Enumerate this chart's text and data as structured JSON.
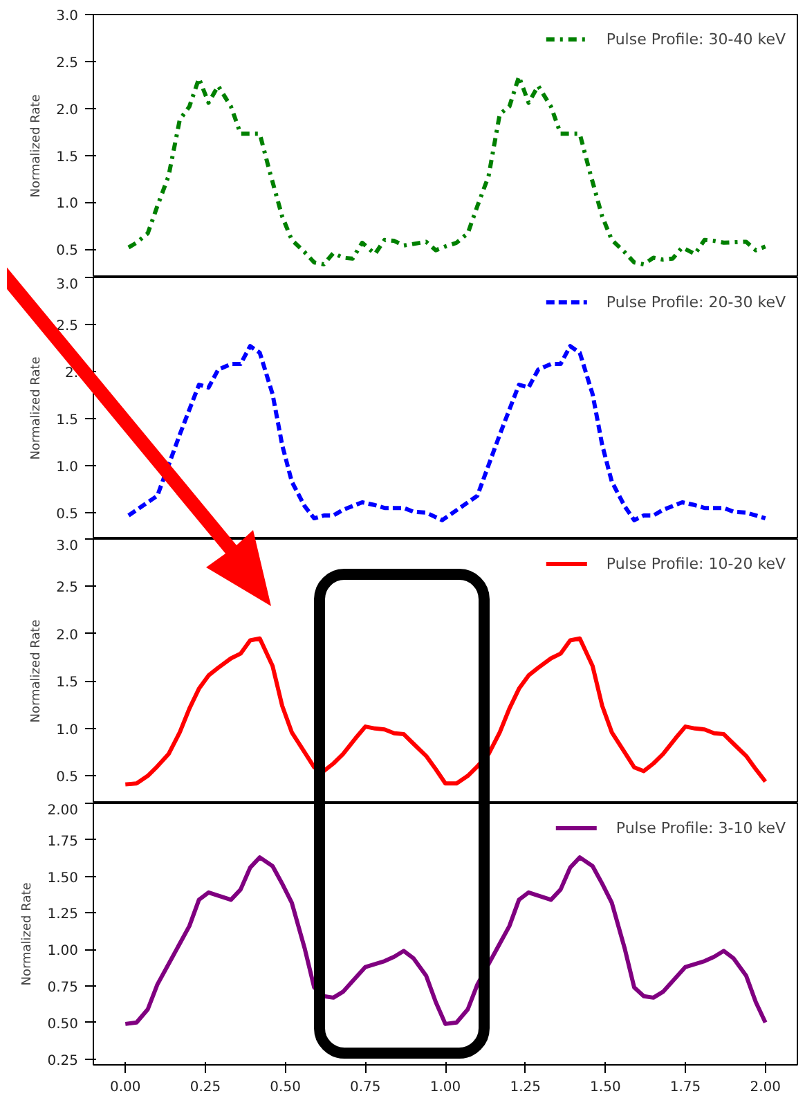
{
  "chart_data": [
    {
      "type": "line",
      "ylabel": "Normalized Rate",
      "xlim": [
        -0.1,
        2.1
      ],
      "xticks": [
        0,
        0.25,
        0.5,
        0.75,
        1,
        1.25,
        1.5,
        1.75,
        2
      ],
      "ylim": [
        0.2,
        3.0
      ],
      "yticks": [
        0.5,
        {
          "value": 1,
          "label": "1.0"
        },
        1.5,
        {
          "value": 2,
          "label": "2.0"
        },
        2.5,
        {
          "value": 3,
          "label": "3.0"
        }
      ],
      "tick_labels": "y",
      "legend": "top right",
      "line_style": "dashdot",
      "grid": false,
      "x": [
        0.01,
        0.035,
        0.07,
        0.1,
        0.135,
        0.17,
        0.2,
        0.23,
        0.26,
        0.29,
        0.33,
        0.36,
        0.42,
        0.45,
        0.49,
        0.52,
        0.56,
        0.59,
        0.62,
        0.65,
        0.68,
        0.71,
        0.74,
        0.78,
        0.81,
        0.84,
        0.87,
        0.94,
        0.97,
        1.0,
        1.035,
        1.07,
        1.1,
        1.135,
        1.17,
        1.2,
        1.23,
        1.26,
        1.29,
        1.33,
        1.36,
        1.42,
        1.45,
        1.49,
        1.52,
        1.56,
        1.59,
        1.62,
        1.65,
        1.68,
        1.71,
        1.74,
        1.78,
        1.81,
        1.84,
        1.87,
        1.94,
        1.97,
        2.0
      ],
      "series": [
        {
          "name": "Pulse Profile: 30-40 keV",
          "color": "#008000",
          "values": [
            0.52,
            0.57,
            0.67,
            0.96,
            1.28,
            1.88,
            2.02,
            2.32,
            2.06,
            2.24,
            2.02,
            1.73,
            1.73,
            1.34,
            0.85,
            0.6,
            0.47,
            0.36,
            0.34,
            0.46,
            0.41,
            0.4,
            0.57,
            0.45,
            0.6,
            0.59,
            0.54,
            0.58,
            0.49,
            0.53,
            0.57,
            0.67,
            0.96,
            1.28,
            1.94,
            2.02,
            2.34,
            2.06,
            2.24,
            2.02,
            1.73,
            1.73,
            1.34,
            0.85,
            0.6,
            0.47,
            0.36,
            0.34,
            0.41,
            0.39,
            0.4,
            0.52,
            0.45,
            0.6,
            0.59,
            0.57,
            0.58,
            0.49,
            0.53
          ]
        }
      ]
    },
    {
      "type": "line",
      "ylabel": "Normalized Rate",
      "xlim": [
        -0.1,
        2.1
      ],
      "xticks": [
        0,
        0.25,
        0.5,
        0.75,
        1,
        1.25,
        1.5,
        1.75,
        2
      ],
      "ylim": [
        0.22,
        3.0
      ],
      "yticks": [
        0.5,
        {
          "value": 1,
          "label": "1.0"
        },
        1.5,
        {
          "value": 2,
          "label": "2."
        },
        2.5,
        {
          "value": 3,
          "label": "3.0"
        }
      ],
      "tick_labels": "y",
      "legend": "top right",
      "line_style": "dashed",
      "grid": false,
      "x": [
        0.01,
        0.1,
        0.17,
        0.23,
        0.26,
        0.29,
        0.33,
        0.36,
        0.39,
        0.42,
        0.46,
        0.49,
        0.52,
        0.56,
        0.59,
        0.62,
        0.65,
        0.68,
        0.74,
        0.78,
        0.81,
        0.87,
        0.9,
        0.94,
        0.99,
        1.1,
        1.17,
        1.23,
        1.26,
        1.29,
        1.33,
        1.36,
        1.39,
        1.42,
        1.46,
        1.49,
        1.52,
        1.56,
        1.59,
        1.62,
        1.65,
        1.68,
        1.74,
        1.78,
        1.81,
        1.87,
        1.9,
        1.94,
        2.0
      ],
      "series": [
        {
          "name": "Pulse Profile: 20-30 keV",
          "color": "#0000ff",
          "values": [
            0.47,
            0.68,
            1.33,
            1.86,
            1.83,
            2.02,
            2.08,
            2.08,
            2.27,
            2.2,
            1.76,
            1.22,
            0.83,
            0.57,
            0.44,
            0.47,
            0.47,
            0.53,
            0.61,
            0.58,
            0.55,
            0.55,
            0.51,
            0.5,
            0.42,
            0.68,
            1.33,
            1.86,
            1.83,
            2.02,
            2.08,
            2.08,
            2.27,
            2.2,
            1.76,
            1.22,
            0.83,
            0.57,
            0.42,
            0.47,
            0.47,
            0.53,
            0.61,
            0.58,
            0.55,
            0.55,
            0.51,
            0.5,
            0.44
          ]
        }
      ]
    },
    {
      "type": "line",
      "ylabel": "Normalized Rate",
      "xlim": [
        -0.1,
        2.1
      ],
      "xticks": [
        0,
        0.25,
        0.5,
        0.75,
        1,
        1.25,
        1.5,
        1.75,
        2
      ],
      "ylim": [
        0.21,
        3.0
      ],
      "yticks": [
        0.5,
        {
          "value": 1,
          "label": "1.0"
        },
        1.5,
        {
          "value": 2,
          "label": "2.0"
        },
        2.5,
        {
          "value": 3,
          "label": "3.0"
        }
      ],
      "tick_labels": "y",
      "legend": "top right",
      "line_style": "solid",
      "grid": false,
      "x": [
        0,
        0.035,
        0.07,
        0.1,
        0.135,
        0.17,
        0.2,
        0.23,
        0.26,
        0.29,
        0.33,
        0.36,
        0.39,
        0.42,
        0.46,
        0.49,
        0.52,
        0.56,
        0.59,
        0.62,
        0.65,
        0.68,
        0.72,
        0.75,
        0.78,
        0.81,
        0.84,
        0.87,
        0.9,
        0.94,
        0.97,
        1.0,
        1.035,
        1.07,
        1.1,
        1.135,
        1.17,
        1.2,
        1.23,
        1.26,
        1.29,
        1.33,
        1.36,
        1.39,
        1.42,
        1.46,
        1.49,
        1.52,
        1.56,
        1.59,
        1.62,
        1.65,
        1.68,
        1.72,
        1.75,
        1.78,
        1.81,
        1.84,
        1.87,
        1.9,
        1.94,
        1.97,
        2.0
      ],
      "series": [
        {
          "name": "Pulse Profile: 10-20 keV",
          "color": "#ff0000",
          "values": [
            0.41,
            0.42,
            0.5,
            0.6,
            0.73,
            0.96,
            1.21,
            1.42,
            1.56,
            1.64,
            1.74,
            1.79,
            1.93,
            1.95,
            1.66,
            1.24,
            0.96,
            0.75,
            0.59,
            0.55,
            0.63,
            0.73,
            0.9,
            1.02,
            1.0,
            0.99,
            0.95,
            0.94,
            0.84,
            0.71,
            0.57,
            0.42,
            0.42,
            0.5,
            0.6,
            0.73,
            0.96,
            1.21,
            1.42,
            1.56,
            1.64,
            1.74,
            1.79,
            1.93,
            1.95,
            1.66,
            1.24,
            0.96,
            0.75,
            0.59,
            0.55,
            0.63,
            0.73,
            0.9,
            1.02,
            1.0,
            0.99,
            0.95,
            0.94,
            0.84,
            0.71,
            0.57,
            0.44
          ]
        }
      ]
    },
    {
      "type": "line",
      "ylabel": "Normalized Rate",
      "xlim": [
        -0.1,
        2.1
      ],
      "xticks": [
        {
          "value": 0,
          "label": "0.00"
        },
        0.25,
        {
          "value": 0.5,
          "label": "0.50"
        },
        0.75,
        {
          "value": 1,
          "label": "1.00"
        },
        1.25,
        {
          "value": 1.5,
          "label": "1.50"
        },
        1.75,
        {
          "value": 2,
          "label": "2.00"
        }
      ],
      "ylim": [
        0.21,
        2.0
      ],
      "yticks": [
        0.25,
        {
          "value": 0.5,
          "label": "0.50"
        },
        0.75,
        {
          "value": 1,
          "label": "1.00"
        },
        1.25,
        {
          "value": 1.5,
          "label": "1.50"
        },
        1.75,
        {
          "value": 2,
          "label": "2.00"
        }
      ],
      "legend": "top right",
      "line_style": "solid",
      "grid": false,
      "x": [
        0,
        0.035,
        0.07,
        0.1,
        0.17,
        0.2,
        0.23,
        0.26,
        0.33,
        0.36,
        0.39,
        0.42,
        0.46,
        0.49,
        0.52,
        0.56,
        0.59,
        0.62,
        0.65,
        0.68,
        0.75,
        0.81,
        0.84,
        0.87,
        0.9,
        0.94,
        0.97,
        1.0,
        1.035,
        1.07,
        1.1,
        1.17,
        1.2,
        1.23,
        1.26,
        1.33,
        1.36,
        1.39,
        1.42,
        1.46,
        1.49,
        1.52,
        1.56,
        1.59,
        1.62,
        1.65,
        1.68,
        1.75,
        1.81,
        1.84,
        1.87,
        1.9,
        1.94,
        1.97,
        2.0
      ],
      "series": [
        {
          "name": "Pulse Profile: 3-10 keV",
          "color": "#800080",
          "values": [
            0.49,
            0.5,
            0.59,
            0.76,
            1.04,
            1.16,
            1.34,
            1.39,
            1.34,
            1.41,
            1.56,
            1.63,
            1.57,
            1.45,
            1.32,
            1.01,
            0.74,
            0.68,
            0.67,
            0.71,
            0.88,
            0.92,
            0.95,
            0.99,
            0.94,
            0.82,
            0.64,
            0.49,
            0.5,
            0.59,
            0.76,
            1.04,
            1.16,
            1.34,
            1.39,
            1.34,
            1.41,
            1.56,
            1.63,
            1.57,
            1.45,
            1.32,
            1.01,
            0.74,
            0.68,
            0.67,
            0.71,
            0.88,
            0.92,
            0.95,
            0.99,
            0.94,
            0.82,
            0.64,
            0.5
          ]
        }
      ]
    }
  ]
}
